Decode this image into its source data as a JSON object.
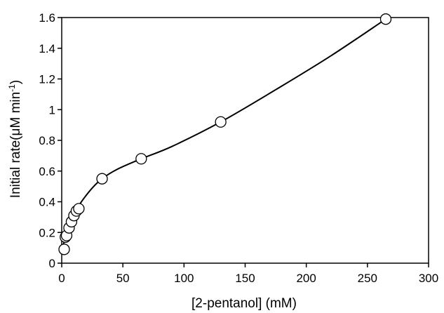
{
  "chart_data": {
    "type": "scatter",
    "title": "",
    "xlabel": "[2-pentanol] (mM)",
    "ylabel": {
      "main": "Initial rate(μM min",
      "sup": "-1",
      "close": ")"
    },
    "xlim": [
      0,
      300
    ],
    "ylim": [
      0,
      1.6
    ],
    "xticks": [
      "0",
      "50",
      "100",
      "150",
      "200",
      "250",
      "300"
    ],
    "yticks": [
      "0",
      "0.2",
      "0.4",
      "0.6",
      "0.8",
      "1",
      "1.2",
      "1.4",
      "1.6"
    ],
    "grid": false,
    "legend": "none",
    "marker": "open-circle",
    "fit_line": true,
    "series": [
      {
        "x": [
          2,
          3,
          4,
          6,
          8,
          10,
          12,
          14,
          33,
          65,
          130,
          265
        ],
        "y": [
          0.09,
          0.17,
          0.18,
          0.23,
          0.27,
          0.31,
          0.34,
          0.355,
          0.55,
          0.68,
          0.92,
          1.59
        ]
      }
    ],
    "curve": {
      "x": [
        0,
        4,
        8,
        12,
        17,
        25,
        33,
        45,
        65,
        90,
        130,
        175,
        220,
        265
      ],
      "y": [
        0.07,
        0.21,
        0.29,
        0.35,
        0.41,
        0.49,
        0.55,
        0.61,
        0.68,
        0.76,
        0.92,
        1.13,
        1.35,
        1.59
      ]
    },
    "colors": {
      "axis": "#000000",
      "marker_fill": "#ffffff",
      "line": "#000000"
    }
  }
}
